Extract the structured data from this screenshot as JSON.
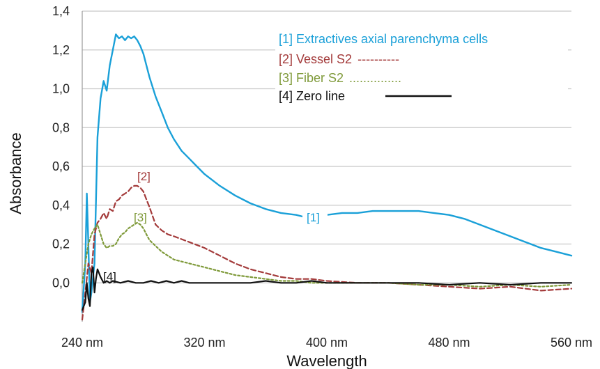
{
  "chart_data": {
    "type": "line",
    "title": "",
    "xlabel": "Wavelength",
    "ylabel": "Absorbance",
    "xlim": [
      240,
      560
    ],
    "ylim": [
      -0.2,
      1.4
    ],
    "x_ticks": [
      240,
      320,
      400,
      480,
      560
    ],
    "x_tick_labels": [
      "240 nm",
      "320 nm",
      "400 nm",
      "480 nm",
      "560 nm"
    ],
    "y_ticks": [
      0.0,
      0.2,
      0.4,
      0.6,
      0.8,
      1.0,
      1.2,
      1.4
    ],
    "y_tick_labels": [
      "0,0",
      "0,2",
      "0,4",
      "0,6",
      "0,8",
      "1,0",
      "1,2",
      "1,4"
    ],
    "grid": "horizontal",
    "legend_position": "top-right",
    "series": [
      {
        "name": "[1] Extractives axial parenchyma cells",
        "legend_suffix": "",
        "curve_label": "[1]",
        "color": "#1aa0d8",
        "dash": "solid",
        "x": [
          240,
          242,
          243,
          244,
          245,
          246,
          248,
          250,
          252,
          254,
          256,
          258,
          260,
          262,
          264,
          266,
          268,
          270,
          272,
          274,
          276,
          278,
          280,
          284,
          288,
          292,
          296,
          300,
          305,
          310,
          315,
          320,
          330,
          340,
          350,
          360,
          370,
          380,
          385,
          395,
          400,
          410,
          420,
          430,
          440,
          450,
          460,
          470,
          480,
          490,
          500,
          510,
          520,
          530,
          540,
          550,
          560
        ],
        "y": [
          -0.15,
          0.1,
          0.46,
          0.2,
          -0.1,
          -0.05,
          0.1,
          0.75,
          0.95,
          1.04,
          0.99,
          1.12,
          1.2,
          1.28,
          1.26,
          1.27,
          1.25,
          1.27,
          1.26,
          1.27,
          1.25,
          1.22,
          1.18,
          1.06,
          0.96,
          0.88,
          0.8,
          0.74,
          0.68,
          0.64,
          0.6,
          0.56,
          0.5,
          0.45,
          0.41,
          0.38,
          0.36,
          0.35,
          0.34,
          0.35,
          0.35,
          0.36,
          0.36,
          0.37,
          0.37,
          0.37,
          0.37,
          0.36,
          0.35,
          0.33,
          0.3,
          0.27,
          0.24,
          0.21,
          0.18,
          0.16,
          0.14
        ]
      },
      {
        "name": "[2] Vessel S2",
        "legend_suffix": "----------",
        "curve_label": "[2]",
        "color": "#a33a3a",
        "dash": "dash",
        "x": [
          240,
          242,
          244,
          246,
          248,
          250,
          252,
          254,
          256,
          258,
          260,
          262,
          264,
          266,
          268,
          270,
          272,
          274,
          276,
          278,
          280,
          282,
          284,
          288,
          292,
          296,
          300,
          310,
          320,
          330,
          340,
          350,
          360,
          370,
          380,
          390,
          400,
          420,
          440,
          460,
          480,
          500,
          520,
          540,
          560
        ],
        "y": [
          -0.19,
          -0.05,
          0.1,
          0.05,
          0.25,
          0.31,
          0.33,
          0.36,
          0.33,
          0.38,
          0.37,
          0.42,
          0.43,
          0.45,
          0.46,
          0.47,
          0.49,
          0.5,
          0.5,
          0.49,
          0.47,
          0.43,
          0.39,
          0.3,
          0.27,
          0.25,
          0.24,
          0.21,
          0.18,
          0.14,
          0.1,
          0.07,
          0.05,
          0.03,
          0.02,
          0.02,
          0.01,
          0.0,
          0.0,
          -0.01,
          -0.02,
          -0.03,
          -0.02,
          -0.04,
          -0.03
        ]
      },
      {
        "name": "[3] Fiber S2",
        "legend_suffix": "...............",
        "curve_label": "[3]",
        "color": "#7f9a3a",
        "dash": "dot",
        "x": [
          240,
          242,
          244,
          246,
          248,
          250,
          252,
          254,
          256,
          258,
          260,
          262,
          264,
          266,
          268,
          270,
          272,
          274,
          276,
          278,
          280,
          282,
          284,
          288,
          292,
          296,
          300,
          310,
          320,
          330,
          340,
          350,
          360,
          370,
          380,
          390,
          400,
          420,
          440,
          460,
          480,
          500,
          520,
          540,
          560
        ],
        "y": [
          0.0,
          0.1,
          0.2,
          0.25,
          0.28,
          0.3,
          0.25,
          0.2,
          0.18,
          0.19,
          0.19,
          0.2,
          0.23,
          0.25,
          0.26,
          0.28,
          0.29,
          0.3,
          0.31,
          0.3,
          0.28,
          0.25,
          0.22,
          0.19,
          0.16,
          0.14,
          0.12,
          0.1,
          0.08,
          0.06,
          0.04,
          0.03,
          0.02,
          0.01,
          0.01,
          0.0,
          0.0,
          0.0,
          0.0,
          -0.01,
          -0.01,
          -0.02,
          -0.01,
          -0.02,
          -0.01
        ]
      },
      {
        "name": "[4] Zero line",
        "legend_suffix": "",
        "curve_label": "[4]",
        "color": "#111111",
        "dash": "solid",
        "x": [
          240,
          242,
          243,
          244,
          245,
          246,
          247,
          248,
          249,
          250,
          252,
          254,
          256,
          258,
          260,
          265,
          270,
          275,
          280,
          285,
          290,
          295,
          300,
          305,
          310,
          320,
          330,
          340,
          350,
          360,
          370,
          380,
          390,
          400,
          410,
          420,
          440,
          460,
          480,
          500,
          520,
          540,
          560
        ],
        "y": [
          -0.14,
          -0.1,
          0.0,
          -0.08,
          -0.12,
          0.05,
          0.08,
          -0.05,
          0.02,
          0.07,
          0.03,
          0.0,
          0.01,
          0.0,
          0.01,
          0.0,
          0.01,
          0.0,
          0.0,
          0.01,
          0.0,
          0.01,
          0.0,
          0.01,
          0.0,
          0.0,
          0.0,
          0.0,
          0.0,
          0.01,
          0.0,
          0.0,
          0.01,
          0.0,
          0.0,
          0.0,
          0.0,
          0.0,
          -0.01,
          0.0,
          -0.01,
          0.0,
          0.0
        ]
      }
    ]
  }
}
